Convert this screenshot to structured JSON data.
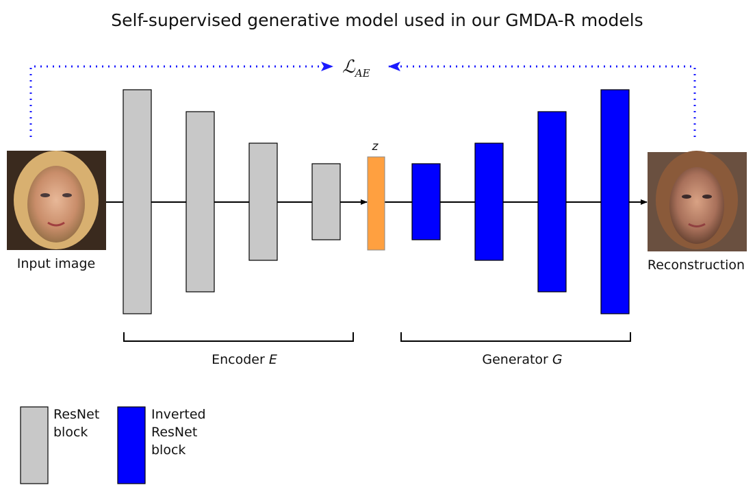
{
  "title": "Self-supervised generative model used in our GMDA-R models",
  "input_label": "Input image",
  "output_label": "Reconstruction",
  "latent_label": "z",
  "loss_label": {
    "symbol": "ℒ",
    "subscript": "AE"
  },
  "encoder": {
    "label": "Encoder",
    "symbol": "E"
  },
  "generator": {
    "label": "Generator",
    "symbol": "G"
  },
  "legend": [
    {
      "lines": [
        "ResNet",
        "block"
      ]
    },
    {
      "lines": [
        "Inverted",
        "ResNet",
        "block"
      ]
    }
  ]
}
